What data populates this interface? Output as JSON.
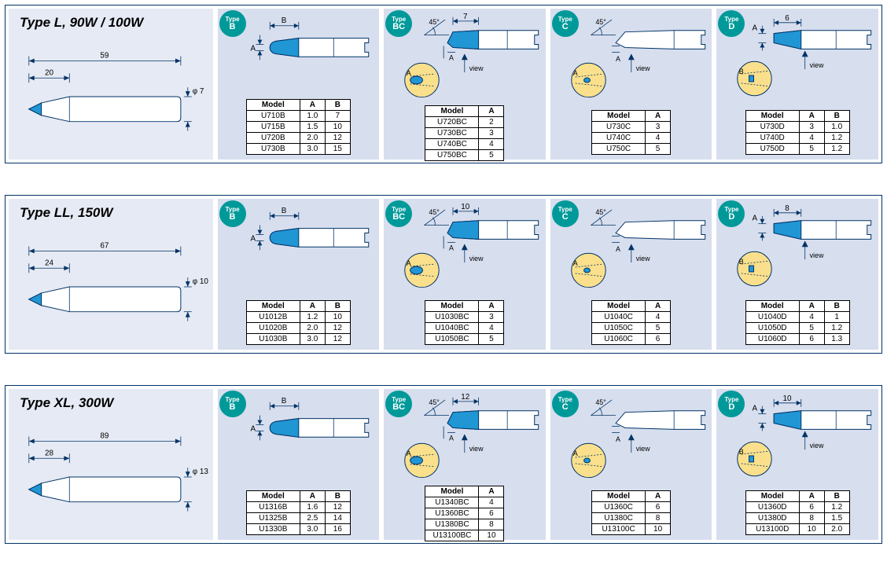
{
  "colors": {
    "panel_bg": "#d7deee",
    "header_bg": "#e6eaf4",
    "border": "#003366",
    "badge": "#009999",
    "tip_blue": "#2196d4",
    "view_circle": "#fae08c"
  },
  "sections": [
    {
      "title": "Type L, 90W / 100W",
      "main_diagram": {
        "total_length": "59",
        "tip_length": "20",
        "diameter": "φ 7"
      },
      "panels": [
        {
          "type_code": "B",
          "diagram": "B",
          "dim_top": "B",
          "dim_left": "A",
          "columns": [
            "Model",
            "A",
            "B"
          ],
          "col_classes": [
            "col-model",
            "col-a",
            "col-b"
          ],
          "rows": [
            [
              "U710B",
              "1.0",
              "7"
            ],
            [
              "U715B",
              "1.5",
              "10"
            ],
            [
              "U720B",
              "2.0",
              "12"
            ],
            [
              "U730B",
              "3.0",
              "15"
            ]
          ]
        },
        {
          "type_code": "BC",
          "diagram": "BC",
          "angle": "45°",
          "dim_top": "7",
          "view_label": "view",
          "columns": [
            "Model",
            "A"
          ],
          "col_classes": [
            "col-model",
            "col-a"
          ],
          "rows": [
            [
              "U720BC",
              "2"
            ],
            [
              "U730BC",
              "3"
            ],
            [
              "U740BC",
              "4"
            ],
            [
              "U750BC",
              "5"
            ]
          ]
        },
        {
          "type_code": "C",
          "diagram": "C",
          "angle": "45°",
          "view_label": "view",
          "columns": [
            "Model",
            "A"
          ],
          "col_classes": [
            "col-model",
            "col-a"
          ],
          "rows": [
            [
              "U730C",
              "3"
            ],
            [
              "U740C",
              "4"
            ],
            [
              "U750C",
              "5"
            ]
          ]
        },
        {
          "type_code": "D",
          "diagram": "D",
          "dim_a": "A",
          "dim_top": "6",
          "view_label": "view",
          "columns": [
            "Model",
            "A",
            "B"
          ],
          "col_classes": [
            "col-model",
            "col-a",
            "col-b"
          ],
          "rows": [
            [
              "U730D",
              "3",
              "1.0"
            ],
            [
              "U740D",
              "4",
              "1.2"
            ],
            [
              "U750D",
              "5",
              "1.2"
            ]
          ]
        }
      ]
    },
    {
      "title": "Type LL, 150W",
      "main_diagram": {
        "total_length": "67",
        "tip_length": "24",
        "diameter": "φ 10"
      },
      "panels": [
        {
          "type_code": "B",
          "diagram": "B",
          "dim_top": "B",
          "dim_left": "A",
          "columns": [
            "Model",
            "A",
            "B"
          ],
          "col_classes": [
            "col-model",
            "col-a",
            "col-b"
          ],
          "rows": [
            [
              "U1012B",
              "1.2",
              "10"
            ],
            [
              "U1020B",
              "2.0",
              "12"
            ],
            [
              "U1030B",
              "3.0",
              "12"
            ]
          ]
        },
        {
          "type_code": "BC",
          "diagram": "BC",
          "angle": "45°",
          "dim_top": "10",
          "view_label": "view",
          "columns": [
            "Model",
            "A"
          ],
          "col_classes": [
            "col-model",
            "col-a"
          ],
          "rows": [
            [
              "U1030BC",
              "3"
            ],
            [
              "U1040BC",
              "4"
            ],
            [
              "U1050BC",
              "5"
            ]
          ]
        },
        {
          "type_code": "C",
          "diagram": "C",
          "angle": "45°",
          "view_label": "view",
          "columns": [
            "Model",
            "A"
          ],
          "col_classes": [
            "col-model",
            "col-a"
          ],
          "rows": [
            [
              "U1040C",
              "4"
            ],
            [
              "U1050C",
              "5"
            ],
            [
              "U1060C",
              "6"
            ]
          ]
        },
        {
          "type_code": "D",
          "diagram": "D",
          "dim_a": "A",
          "dim_top": "8",
          "view_label": "view",
          "columns": [
            "Model",
            "A",
            "B"
          ],
          "col_classes": [
            "col-model",
            "col-a",
            "col-b"
          ],
          "rows": [
            [
              "U1040D",
              "4",
              "1"
            ],
            [
              "U1050D",
              "5",
              "1.2"
            ],
            [
              "U1060D",
              "6",
              "1.3"
            ]
          ]
        }
      ]
    },
    {
      "title": "Type XL, 300W",
      "main_diagram": {
        "total_length": "89",
        "tip_length": "28",
        "diameter": "φ 13"
      },
      "panels": [
        {
          "type_code": "B",
          "diagram": "B",
          "dim_top": "B",
          "dim_left": "A",
          "columns": [
            "Model",
            "A",
            "B"
          ],
          "col_classes": [
            "col-model",
            "col-a",
            "col-b"
          ],
          "rows": [
            [
              "U1316B",
              "1.6",
              "12"
            ],
            [
              "U1325B",
              "2.5",
              "14"
            ],
            [
              "U1330B",
              "3.0",
              "16"
            ]
          ]
        },
        {
          "type_code": "BC",
          "diagram": "BC",
          "angle": "45°",
          "dim_top": "12",
          "view_label": "view",
          "columns": [
            "Model",
            "A"
          ],
          "col_classes": [
            "col-model",
            "col-a"
          ],
          "rows": [
            [
              "U1340BC",
              "4"
            ],
            [
              "U1360BC",
              "6"
            ],
            [
              "U1380BC",
              "8"
            ],
            [
              "U13100BC",
              "10"
            ]
          ]
        },
        {
          "type_code": "C",
          "diagram": "C",
          "angle": "45°",
          "view_label": "view",
          "columns": [
            "Model",
            "A"
          ],
          "col_classes": [
            "col-model",
            "col-a"
          ],
          "rows": [
            [
              "U1360C",
              "6"
            ],
            [
              "U1380C",
              "8"
            ],
            [
              "U13100C",
              "10"
            ]
          ]
        },
        {
          "type_code": "D",
          "diagram": "D",
          "dim_a": "A",
          "dim_top": "10",
          "view_label": "view",
          "columns": [
            "Model",
            "A",
            "B"
          ],
          "col_classes": [
            "col-model",
            "col-a",
            "col-b"
          ],
          "rows": [
            [
              "U1360D",
              "6",
              "1.2"
            ],
            [
              "U1380D",
              "8",
              "1.5"
            ],
            [
              "U13100D",
              "10",
              "2.0"
            ]
          ]
        }
      ]
    }
  ]
}
